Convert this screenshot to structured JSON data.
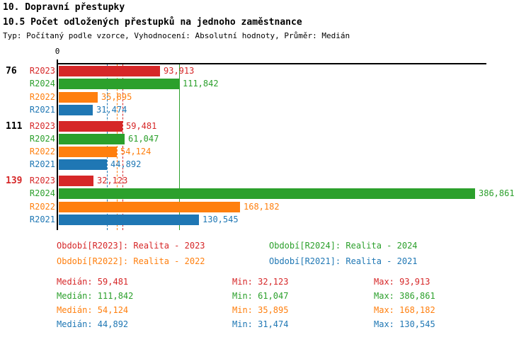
{
  "header": {
    "title": "10. Dopravní přestupky",
    "subtitle": "10.5 Počet odložených přestupků na jednoho zaměstnance",
    "meta": "Typ: Počítaný podle vzorce, Vyhodnocení: Absolutní hodnoty, Průměr: Medián"
  },
  "chart_data": {
    "type": "bar",
    "orientation": "horizontal",
    "axis": {
      "origin_label": "0"
    },
    "series_colors": {
      "R2023": "#d62728",
      "R2024": "#2ca02c",
      "R2022": "#ff7f0e",
      "R2021": "#1f77b4"
    },
    "groups": [
      {
        "label": "76",
        "label_color": "#000000",
        "bars": [
          {
            "series": "R2023",
            "value": 93.913,
            "label": "93,913"
          },
          {
            "series": "R2024",
            "value": 111.842,
            "label": "111,842"
          },
          {
            "series": "R2022",
            "value": 35.895,
            "label": "35,895"
          },
          {
            "series": "R2021",
            "value": 31.474,
            "label": "31,474"
          }
        ]
      },
      {
        "label": "111",
        "label_color": "#000000",
        "bars": [
          {
            "series": "R2023",
            "value": 59.481,
            "label": "59,481"
          },
          {
            "series": "R2024",
            "value": 61.047,
            "label": "61,047"
          },
          {
            "series": "R2022",
            "value": 54.124,
            "label": "54,124"
          },
          {
            "series": "R2021",
            "value": 44.892,
            "label": "44,892"
          }
        ]
      },
      {
        "label": "139",
        "label_color": "#d62728",
        "bars": [
          {
            "series": "R2023",
            "value": 32.123,
            "label": "32,123"
          },
          {
            "series": "R2024",
            "value": 386.861,
            "label": "386,861"
          },
          {
            "series": "R2022",
            "value": 168.182,
            "label": "168,182"
          },
          {
            "series": "R2021",
            "value": 130.545,
            "label": "130,545"
          }
        ]
      }
    ],
    "medians": [
      {
        "series": "R2023",
        "value": 59.481,
        "line": "dashed"
      },
      {
        "series": "R2024",
        "value": 111.842,
        "line": "solid"
      },
      {
        "series": "R2022",
        "value": 54.124,
        "line": "dashed"
      },
      {
        "series": "R2021",
        "value": 44.892,
        "line": "dashed"
      }
    ]
  },
  "legend": {
    "items": [
      {
        "text": "Období[R2023]: Realita - 2023",
        "color": "#d62728"
      },
      {
        "text": "Období[R2024]: Realita - 2024",
        "color": "#2ca02c"
      },
      {
        "text": "Období[R2022]: Realita - 2022",
        "color": "#ff7f0e"
      },
      {
        "text": "Období[R2021]: Realita - 2021",
        "color": "#1f77b4"
      }
    ]
  },
  "stats": {
    "rows": [
      {
        "color": "#d62728",
        "median": "Medián: 59,481",
        "min": "Min: 32,123",
        "max": "Max: 93,913"
      },
      {
        "color": "#2ca02c",
        "median": "Medián: 111,842",
        "min": "Min: 61,047",
        "max": "Max: 386,861"
      },
      {
        "color": "#ff7f0e",
        "median": "Medián: 54,124",
        "min": "Min: 35,895",
        "max": "Max: 168,182"
      },
      {
        "color": "#1f77b4",
        "median": "Medián: 44,892",
        "min": "Min: 31,474",
        "max": "Max: 130,545"
      }
    ]
  }
}
